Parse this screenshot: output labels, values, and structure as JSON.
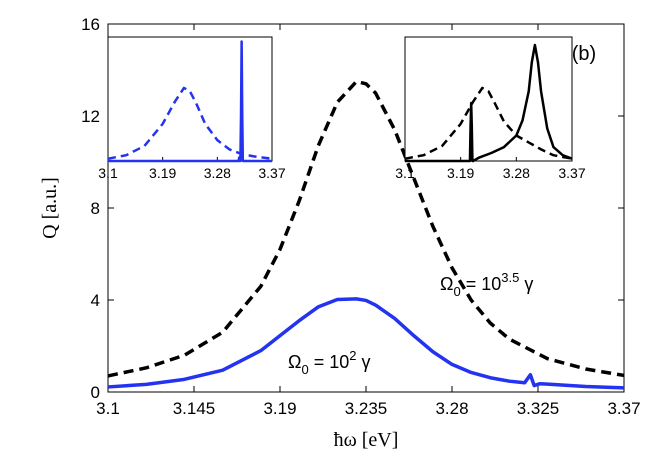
{
  "chart_data": [
    {
      "type": "line",
      "panel": "main",
      "title": "",
      "xlabel": "ħω [eV]",
      "ylabel": "Q [a.u.]",
      "xlim": [
        3.1,
        3.37
      ],
      "ylim": [
        0,
        16
      ],
      "xticks": [
        3.1,
        3.145,
        3.19,
        3.235,
        3.28,
        3.325,
        3.37
      ],
      "xtick_labels": [
        "3.1",
        "3.145",
        "3.19",
        "3.235",
        "3.28",
        "3.325",
        "3.37"
      ],
      "yticks": [
        0,
        4,
        8,
        12,
        16
      ],
      "ytick_labels": [
        "0",
        "4",
        "8",
        "12",
        "16"
      ],
      "grid": false,
      "series": [
        {
          "name": "Ω0 = 10^3.5 γ",
          "style": "dashed",
          "color": "#000000",
          "x": [
            3.1,
            3.12,
            3.14,
            3.16,
            3.18,
            3.19,
            3.2,
            3.21,
            3.22,
            3.23,
            3.235,
            3.24,
            3.25,
            3.26,
            3.27,
            3.28,
            3.29,
            3.3,
            3.31,
            3.33,
            3.35,
            3.37
          ],
          "y": [
            0.7,
            1.05,
            1.6,
            2.6,
            4.6,
            6.2,
            8.3,
            10.7,
            12.6,
            13.5,
            13.4,
            13.0,
            11.4,
            9.3,
            7.2,
            5.4,
            4.0,
            3.0,
            2.3,
            1.45,
            1.0,
            0.72
          ]
        },
        {
          "name": "Ω0 = 10^2 γ",
          "style": "solid",
          "color": "#2433f0",
          "x": [
            3.1,
            3.12,
            3.14,
            3.16,
            3.18,
            3.19,
            3.2,
            3.21,
            3.22,
            3.23,
            3.235,
            3.24,
            3.25,
            3.26,
            3.27,
            3.28,
            3.29,
            3.3,
            3.31,
            3.318,
            3.321,
            3.323,
            3.326,
            3.33,
            3.35,
            3.37
          ],
          "y": [
            0.22,
            0.33,
            0.55,
            0.95,
            1.8,
            2.45,
            3.1,
            3.7,
            4.02,
            4.05,
            3.98,
            3.78,
            3.2,
            2.45,
            1.75,
            1.2,
            0.85,
            0.62,
            0.47,
            0.4,
            0.75,
            0.28,
            0.36,
            0.34,
            0.24,
            0.18
          ]
        }
      ],
      "annotations": [
        {
          "name": "dashed-curve",
          "base": "Ω",
          "sub": "0",
          "mid": " =  10",
          "sup": "3.5",
          "tail": " γ"
        },
        {
          "name": "solid-curve",
          "base": "Ω",
          "sub": "0",
          "mid": " =  10",
          "sup": "2",
          "tail": " γ"
        }
      ],
      "panel_label": "(b)"
    },
    {
      "type": "line",
      "panel": "inset-left",
      "xlim": [
        3.1,
        3.37
      ],
      "ylim": [
        0,
        1
      ],
      "xticks": [
        3.1,
        3.19,
        3.28,
        3.37
      ],
      "xtick_labels": [
        "3.1",
        "3.19",
        "3.28",
        "3.37"
      ],
      "series": [
        {
          "name": "dashed-blue",
          "style": "dashed",
          "color": "#2433f0",
          "x": [
            3.1,
            3.13,
            3.16,
            3.19,
            3.21,
            3.225,
            3.235,
            3.245,
            3.26,
            3.28,
            3.3,
            3.32,
            3.34,
            3.37
          ],
          "y": [
            0.02,
            0.05,
            0.13,
            0.32,
            0.51,
            0.63,
            0.6,
            0.5,
            0.32,
            0.18,
            0.1,
            0.06,
            0.04,
            0.02
          ]
        },
        {
          "name": "solid-blue",
          "style": "solid",
          "color": "#2433f0",
          "x": [
            3.1,
            3.3,
            3.315,
            3.316,
            3.317,
            3.318,
            3.319,
            3.32,
            3.321,
            3.322,
            3.323,
            3.325,
            3.37
          ],
          "y": [
            0.0,
            0.0,
            0.0,
            0.03,
            0.0,
            0.0,
            0.4,
            1.03,
            0.4,
            0.0,
            0.0,
            0.0,
            0.0
          ]
        }
      ]
    },
    {
      "type": "line",
      "panel": "inset-right",
      "xlim": [
        3.1,
        3.37
      ],
      "ylim": [
        0,
        1
      ],
      "xticks": [
        3.1,
        3.19,
        3.28,
        3.37
      ],
      "xtick_labels": [
        "3.1",
        "3.19",
        "3.28",
        "3.37"
      ],
      "series": [
        {
          "name": "dashed-black",
          "style": "dashed",
          "color": "#000000",
          "x": [
            3.1,
            3.13,
            3.16,
            3.19,
            3.21,
            3.225,
            3.235,
            3.245,
            3.26,
            3.28,
            3.3,
            3.32,
            3.34,
            3.37
          ],
          "y": [
            0.02,
            0.05,
            0.13,
            0.32,
            0.51,
            0.63,
            0.6,
            0.5,
            0.34,
            0.22,
            0.16,
            0.1,
            0.05,
            0.02
          ]
        },
        {
          "name": "solid-black",
          "style": "solid",
          "color": "#000000",
          "x": [
            3.1,
            3.19,
            3.205,
            3.206,
            3.207,
            3.208,
            3.209,
            3.21,
            3.22,
            3.24,
            3.26,
            3.28,
            3.29,
            3.3,
            3.305,
            3.31,
            3.315,
            3.32,
            3.33,
            3.34,
            3.355,
            3.37
          ],
          "y": [
            0.0,
            0.0,
            0.0,
            0.3,
            0.5,
            0.3,
            0.0,
            0.0,
            0.03,
            0.07,
            0.12,
            0.22,
            0.35,
            0.6,
            0.85,
            1.0,
            0.85,
            0.6,
            0.28,
            0.12,
            0.05,
            0.02
          ]
        }
      ]
    }
  ]
}
